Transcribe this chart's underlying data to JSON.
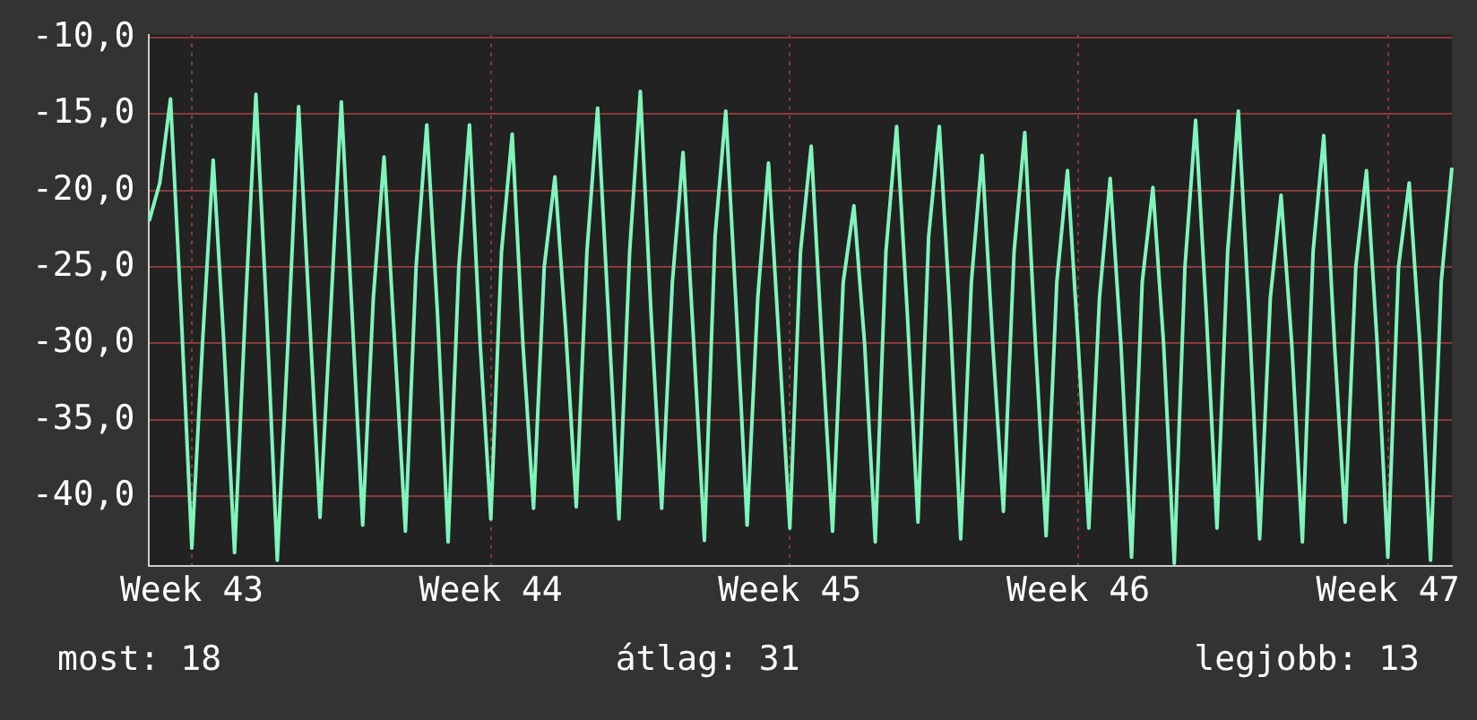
{
  "chart_data": {
    "type": "line",
    "categories": [
      null,
      null,
      null,
      null,
      "Week 43",
      null,
      null,
      null,
      null,
      null,
      null,
      null,
      null,
      null,
      null,
      null,
      null,
      null,
      null,
      null,
      null,
      null,
      null,
      null,
      null,
      null,
      null,
      null,
      null,
      null,
      null,
      null,
      "Week 44",
      null,
      null,
      null,
      null,
      null,
      null,
      null,
      null,
      null,
      null,
      null,
      null,
      null,
      null,
      null,
      null,
      null,
      null,
      null,
      null,
      null,
      null,
      null,
      null,
      null,
      null,
      null,
      "Week 45",
      null,
      null,
      null,
      null,
      null,
      null,
      null,
      null,
      null,
      null,
      null,
      null,
      null,
      null,
      null,
      null,
      null,
      null,
      null,
      null,
      null,
      null,
      null,
      null,
      null,
      null,
      "Week 46",
      null,
      null,
      null,
      null,
      null,
      null,
      null,
      null,
      null,
      null,
      null,
      null,
      null,
      null,
      null,
      null,
      null,
      null,
      null,
      null,
      null,
      null,
      null,
      null,
      null,
      null,
      null,
      null,
      "Week 47",
      null,
      null,
      null,
      null,
      null,
      null
    ],
    "series": [
      {
        "color": "#80f5bb",
        "values": [
          -22,
          -19.5,
          -14.0,
          -28,
          -43.4,
          -30,
          -18.0,
          -30,
          -43.7,
          -28,
          -13.7,
          -28,
          -44.2,
          -30,
          -14.5,
          -28,
          -41.4,
          -28,
          -14.2,
          -28,
          -41.9,
          -27,
          -17.8,
          -30,
          -42.3,
          -25,
          -15.7,
          -28,
          -43.0,
          -25,
          -15.7,
          -30,
          -41.5,
          -24,
          -16.3,
          -30,
          -40.8,
          -25,
          -19.1,
          -29,
          -40.7,
          -24,
          -14.6,
          -28,
          -41.5,
          -24,
          -13.5,
          -28,
          -40.8,
          -26,
          -17.5,
          -30,
          -42.9,
          -23,
          -14.8,
          -28,
          -41.9,
          -27,
          -18.2,
          -30,
          -42.1,
          -24,
          -17.1,
          -30,
          -42.3,
          -26,
          -21.0,
          -30,
          -43.0,
          -24,
          -15.8,
          -28,
          -41.7,
          -23,
          -15.8,
          -28,
          -42.8,
          -26,
          -17.7,
          -30,
          -41.0,
          -24,
          -16.2,
          -30,
          -42.6,
          -26,
          -18.7,
          -30,
          -42.1,
          -27,
          -19.2,
          -30,
          -44.0,
          -26,
          -19.8,
          -30,
          -44.4,
          -25,
          -15.4,
          -28,
          -42.1,
          -24,
          -14.8,
          -28,
          -42.8,
          -27,
          -20.3,
          -30,
          -43.0,
          -24,
          -16.4,
          -30,
          -41.7,
          -25,
          -18.7,
          -30,
          -44.0,
          -25,
          -19.5,
          -30,
          -44.2,
          -26,
          -18.5
        ]
      }
    ],
    "ylim": [
      -44.6,
      -9.8
    ],
    "yticks": [
      {
        "value": -40,
        "label": "-40,0"
      },
      {
        "value": -35,
        "label": "-35,0"
      },
      {
        "value": -30,
        "label": "-30,0"
      },
      {
        "value": -25,
        "label": "-25,0"
      },
      {
        "value": -20,
        "label": "-20,0"
      },
      {
        "value": -15,
        "label": "-15,0"
      },
      {
        "value": -10,
        "label": "-10,0"
      }
    ],
    "grid": true,
    "annotations": [
      "most: 18",
      "átlag: 31",
      "legjobb: 13"
    ]
  }
}
